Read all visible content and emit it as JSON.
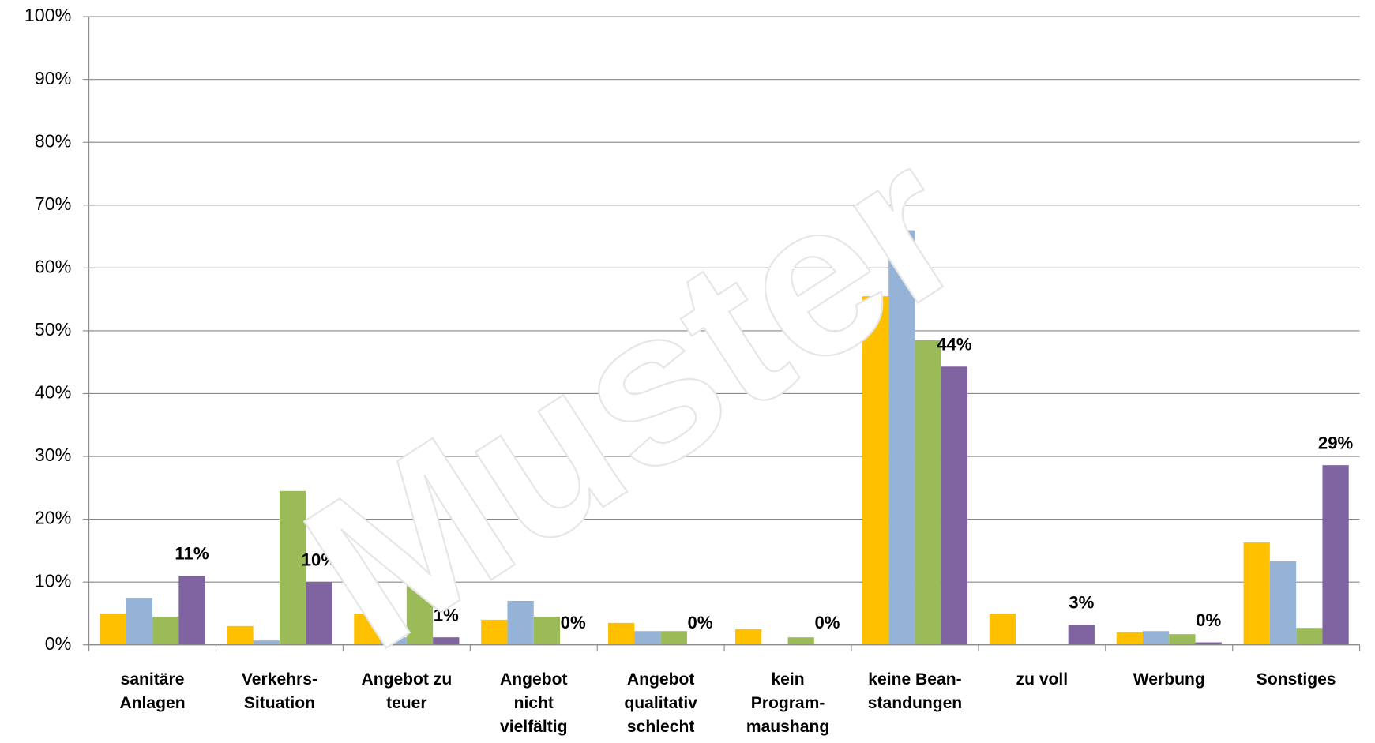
{
  "chart_data": {
    "type": "bar",
    "categories": [
      "sanitäre\nAnlagen",
      "Verkehrs-\nSituation",
      "Angebot zu\nteuer",
      "Angebot\nnicht\nvielfältig",
      "Angebot\nqualitativ\nschlecht",
      "kein\nProgram-\nmaushang",
      "keine Bean-\nstandungen",
      "zu voll",
      "Werbung",
      "Sonstiges"
    ],
    "series": [
      {
        "color": "#ffc000",
        "values": [
          5,
          3,
          5,
          4,
          3.5,
          2.5,
          55.5,
          5,
          2,
          16.3
        ]
      },
      {
        "color": "#95b3d7",
        "values": [
          7.5,
          0.7,
          1.2,
          7,
          2.2,
          0,
          66,
          0,
          2.2,
          13.3
        ]
      },
      {
        "color": "#9bbb59",
        "values": [
          4.5,
          24.5,
          10.5,
          4.5,
          2.2,
          1.2,
          48.5,
          0,
          1.7,
          2.7
        ]
      },
      {
        "color": "#8064a2",
        "values": [
          11,
          10,
          1.2,
          0,
          0,
          0,
          44.3,
          3.2,
          0.4,
          28.6
        ],
        "value_labels": [
          "11%",
          "10%",
          "1%",
          "0%",
          "0%",
          "0%",
          "44%",
          "3%",
          "0%",
          "29%"
        ]
      }
    ],
    "ylim": [
      0,
      100
    ],
    "yticks": [
      {
        "value": 0,
        "label": "0%"
      },
      {
        "value": 10,
        "label": "10%"
      },
      {
        "value": 20,
        "label": "20%"
      },
      {
        "value": 30,
        "label": "30%"
      },
      {
        "value": 40,
        "label": "40%"
      },
      {
        "value": 50,
        "label": "50%"
      },
      {
        "value": 60,
        "label": "60%"
      },
      {
        "value": 70,
        "label": "70%"
      },
      {
        "value": 80,
        "label": "80%"
      },
      {
        "value": 90,
        "label": "90%"
      },
      {
        "value": 100,
        "label": "100%"
      }
    ],
    "grid": true,
    "watermark": "Muster"
  }
}
